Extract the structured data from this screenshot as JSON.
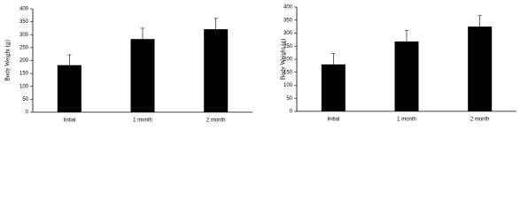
{
  "chart_data": [
    {
      "type": "bar",
      "y_label": "Body Weight (g)",
      "categories": [
        "Initial",
        "1 month",
        "2 month"
      ],
      "values": [
        182,
        283,
        321
      ],
      "errors": [
        40,
        42,
        42
      ],
      "color": "#000000",
      "ylim": [
        0,
        400
      ],
      "yticks": [
        0,
        50,
        100,
        150,
        200,
        250,
        300,
        350,
        400
      ]
    },
    {
      "type": "bar",
      "y_label": "Body Weight (g)",
      "categories": [
        "Initial",
        "1 month",
        "2 month"
      ],
      "values": [
        180,
        268,
        325
      ],
      "errors": [
        42,
        42,
        42
      ],
      "color": "#000000",
      "ylim": [
        0,
        400
      ],
      "yticks": [
        0,
        50,
        100,
        150,
        200,
        250,
        300,
        350,
        400
      ]
    }
  ]
}
